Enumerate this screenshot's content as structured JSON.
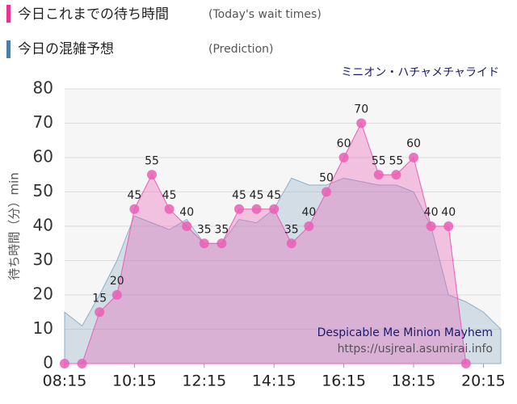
{
  "chart_data": {
    "type": "area",
    "title": "ミニオン・ハチャメチャライド",
    "y_label": "待ち時間（分）min",
    "watermark": [
      "Despicable Me Minion Mayhem",
      "https://usjreal.asumirai.info"
    ],
    "xlim": [
      495,
      1245
    ],
    "xticks": [
      {
        "value": 495,
        "label": "08:15"
      },
      {
        "value": 615,
        "label": "10:15"
      },
      {
        "value": 735,
        "label": "12:15"
      },
      {
        "value": 855,
        "label": "14:15"
      },
      {
        "value": 975,
        "label": "16:15"
      },
      {
        "value": 1095,
        "label": "18:15"
      },
      {
        "value": 1215,
        "label": "20:15"
      }
    ],
    "ylim": [
      0,
      80
    ],
    "yticks": [
      0,
      10,
      20,
      30,
      40,
      50,
      60,
      70,
      80
    ],
    "grid": true,
    "hide_zero_labels": true,
    "series": [
      {
        "name": "今日の混雑予想",
        "note": "(Prediction)",
        "color": "#8fb0c8",
        "x": [
          495,
          525,
          555,
          585,
          615,
          645,
          675,
          705,
          735,
          765,
          795,
          825,
          855,
          885,
          915,
          945,
          975,
          1005,
          1035,
          1065,
          1095,
          1125,
          1155,
          1185,
          1215,
          1245
        ],
        "values": [
          15,
          11,
          20,
          30,
          43,
          41,
          39,
          42,
          35,
          35,
          42,
          41,
          45,
          54,
          52,
          52,
          54,
          53,
          52,
          52,
          50,
          40,
          20,
          18,
          15,
          10
        ]
      },
      {
        "name": "今日これまでの待ち時間",
        "note": "(Today's wait times)",
        "color": "#e95fb5",
        "x": [
          495,
          525,
          555,
          585,
          615,
          645,
          675,
          705,
          735,
          765,
          795,
          825,
          855,
          885,
          915,
          945,
          975,
          1005,
          1035,
          1065,
          1095,
          1125,
          1155,
          1185
        ],
        "values": [
          0,
          0,
          15,
          20,
          45,
          55,
          45,
          40,
          35,
          35,
          45,
          45,
          45,
          35,
          40,
          50,
          60,
          70,
          55,
          55,
          60,
          40,
          40,
          0
        ],
        "labels": true
      }
    ]
  }
}
